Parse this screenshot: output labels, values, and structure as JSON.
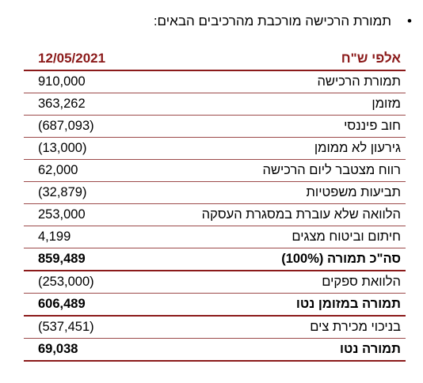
{
  "intro": {
    "bullet": "•",
    "text": "תמורת הרכישה מורכבת מהרכיבים הבאים:"
  },
  "table": {
    "header_label": "אלפי ש\"ח",
    "header_date": "12/05/2021",
    "rows": [
      {
        "label": "תמורת הרכישה",
        "value": "910,000",
        "bold": false
      },
      {
        "label": "מזומן",
        "value": "363,262",
        "bold": false
      },
      {
        "label": "חוב פיננסי",
        "value": "(687,093)",
        "bold": false
      },
      {
        "label": "גירעון לא ממומן",
        "value": "(13,000)",
        "bold": false
      },
      {
        "label": "רווח מצטבר ליום הרכישה",
        "value": "62,000",
        "bold": false
      },
      {
        "label": "תביעות משפטיות",
        "value": "(32,879)",
        "bold": false
      },
      {
        "label": "הלוואה שלא עוברת במסגרת העסקה",
        "value": "253,000",
        "bold": false
      },
      {
        "label": "חיתום וביטוח מצגים",
        "value": "4,199",
        "bold": false
      },
      {
        "label": "סה\"כ תמורה (100%)",
        "value": "859,489",
        "bold": true
      },
      {
        "label": "הלוואת ספקים",
        "value": "(253,000)",
        "bold": false
      },
      {
        "label": "תמורה במזומן נטו",
        "value": "606,489",
        "bold": true
      },
      {
        "label": "בניכוי מכירת צים",
        "value": "(537,451)",
        "bold": false
      },
      {
        "label": "תמורה נטו",
        "value": "69,038",
        "bold": true
      }
    ]
  }
}
